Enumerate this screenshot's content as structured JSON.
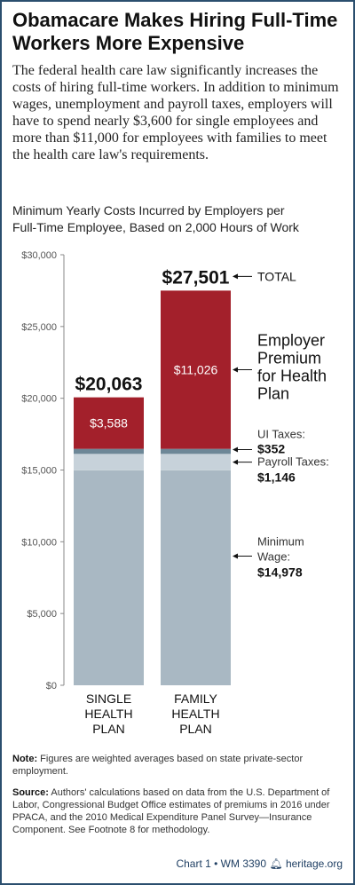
{
  "header": {
    "title_line1": "Obamacare Makes Hiring Full-Time",
    "title_line2": "Workers More Expensive",
    "intro": "The federal health care law significantly increases the costs of hiring full-time workers. In addition to minimum wages, unemployment and payroll taxes, employers will have to spend nearly $3,600 for single employees and more than $11,000 for employees with families to meet the health care law's requirements."
  },
  "chart_data": {
    "type": "bar",
    "stacked": true,
    "title_line1": "Minimum Yearly Costs Incurred by Employers per",
    "title_line2": "Full-Time Employee, Based on 2,000 Hours of Work",
    "ylim": [
      0,
      30000
    ],
    "yticks": [
      "$0",
      "$5,000",
      "$10,000",
      "$15,000",
      "$20,000",
      "$25,000",
      "$30,000"
    ],
    "categories": [
      {
        "line1": "SINGLE",
        "line2": "HEALTH",
        "line3": "PLAN"
      },
      {
        "line1": "FAMILY",
        "line2": "HEALTH",
        "line3": "PLAN"
      }
    ],
    "totals": [
      20063,
      27501
    ],
    "total_labels": [
      "$20,063",
      "$27,501"
    ],
    "series": [
      {
        "values": [
          14978,
          14978
        ],
        "color": "#a9b8c3"
      },
      {
        "values": [
          1146,
          1146
        ],
        "color": "#c7d2da"
      },
      {
        "values": [
          352,
          352
        ],
        "color": "#6d8797"
      },
      {
        "values": [
          3588,
          11026
        ],
        "color": "#a3202b",
        "labels": [
          "$3,588",
          "$11,026"
        ]
      }
    ],
    "annotations": {
      "total": "TOTAL",
      "premium_lines": [
        "Employer",
        "Premium",
        "for Health",
        "Plan"
      ],
      "ui_label": "UI Taxes:",
      "ui_value": "$352",
      "payroll_label": "Payroll Taxes:",
      "payroll_value": "$1,146",
      "wage_label1": "Minimum",
      "wage_label2": "Wage:",
      "wage_value": "$14,978"
    }
  },
  "notes": {
    "note_label": "Note:",
    "note_text": "Figures are weighted averages based on state private-sector employment.",
    "source_label": "Source:",
    "source_text": "Authors' calculations based on data from the U.S. Department of Labor, Congressional Budget Office estimates of premiums in 2016 under PPACA, and the 2010 Medical Expenditure Panel Survey—Insurance Component. See Footnote 8 for methodology."
  },
  "footer": {
    "chart_ref": "Chart 1 • WM 3390",
    "icon": "bell-icon",
    "site": "heritage.org"
  }
}
